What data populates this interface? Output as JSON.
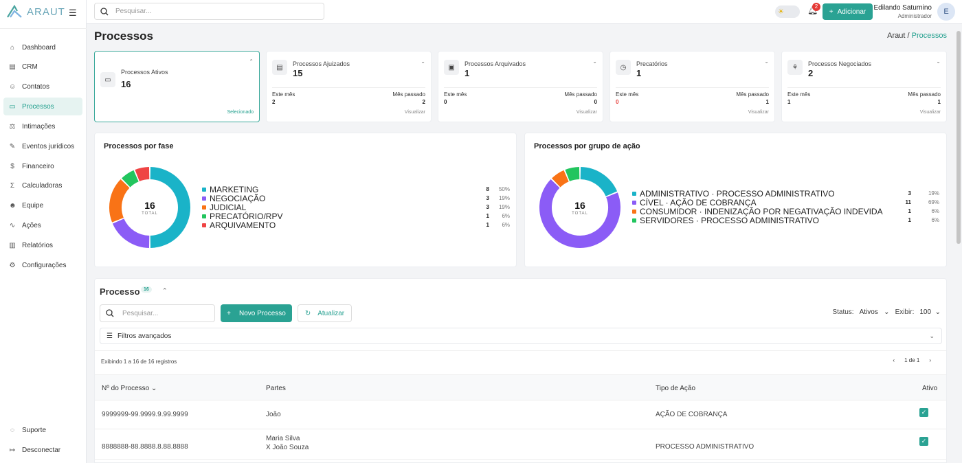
{
  "app": {
    "name": "ARAUT"
  },
  "search": {
    "placeholder": "Pesquisar..."
  },
  "nav": [
    {
      "label": "Dashboard",
      "icon": "home-icon",
      "glyph": "⌂"
    },
    {
      "label": "CRM",
      "icon": "crm-icon",
      "glyph": "▤"
    },
    {
      "label": "Contatos",
      "icon": "contacts-icon",
      "glyph": "☺"
    },
    {
      "label": "Processos",
      "icon": "folder-icon",
      "glyph": "▭"
    },
    {
      "label": "Intimações",
      "icon": "scales-icon",
      "glyph": "⚖"
    },
    {
      "label": "Eventos jurídicos",
      "icon": "gavel-icon",
      "glyph": "✎"
    },
    {
      "label": "Financeiro",
      "icon": "dollar-icon",
      "glyph": "$"
    },
    {
      "label": "Calculadoras",
      "icon": "sigma-icon",
      "glyph": "Σ"
    },
    {
      "label": "Equipe",
      "icon": "team-icon",
      "glyph": "☻"
    },
    {
      "label": "Ações",
      "icon": "activity-icon",
      "glyph": "∿"
    },
    {
      "label": "Relatórios",
      "icon": "bar-chart-icon",
      "glyph": "▥"
    },
    {
      "label": "Configurações",
      "icon": "gear-icon",
      "glyph": "⚙"
    }
  ],
  "nav_bottom": [
    {
      "label": "Suporte",
      "icon": "chat-icon",
      "glyph": "◌"
    },
    {
      "label": "Desconectar",
      "icon": "logout-icon",
      "glyph": "↦"
    }
  ],
  "topbar": {
    "notifications": "2",
    "add_label": "Adicionar",
    "user_name": "Edilando Saturnino",
    "user_role": "Administrador",
    "avatar": "E"
  },
  "page": {
    "title": "Processos",
    "crumb_root": "Araut /",
    "crumb_current": "Processos"
  },
  "stats": [
    {
      "label": "Processos Ativos",
      "value": "16",
      "icon": "folder-icon",
      "glyph": "▭",
      "selected": true,
      "link": "Selecionado"
    },
    {
      "label": "Processos Ajuizados",
      "value": "15",
      "icon": "document-icon",
      "glyph": "▤",
      "this_month_label": "Este mês",
      "this_month": "2",
      "last_month_label": "Mês passado",
      "last_month": "2",
      "link": "Visualizar"
    },
    {
      "label": "Processos Arquivados",
      "value": "1",
      "icon": "archive-icon",
      "glyph": "▣",
      "this_month_label": "Este mês",
      "this_month": "0",
      "last_month_label": "Mês passado",
      "last_month": "0",
      "link": "Visualizar"
    },
    {
      "label": "Precatórios",
      "value": "1",
      "icon": "clock-icon",
      "glyph": "◷",
      "this_month_label": "Este mês",
      "this_month": "0",
      "last_month_label": "Mês passado",
      "last_month": "1",
      "link": "Visualizar",
      "this_month_color": "#e53935"
    },
    {
      "label": "Processos Negociados",
      "value": "2",
      "icon": "handshake-icon",
      "glyph": "⚘",
      "this_month_label": "Este mês",
      "this_month": "1",
      "last_month_label": "Mês passado",
      "last_month": "1",
      "link": "Visualizar"
    }
  ],
  "chart_data": [
    {
      "type": "pie",
      "title": "Processos por fase",
      "total": 16,
      "total_label": "TOTAL",
      "categories": [
        "MARKETING",
        "NEGOCIAÇÃO",
        "JUDICIAL",
        "PRECATÓRIO/RPV",
        "ARQUIVAMENTO"
      ],
      "values": [
        8,
        3,
        3,
        1,
        1
      ],
      "percents": [
        "50%",
        "19%",
        "19%",
        "6%",
        "6%"
      ],
      "colors": [
        "#1ab3c8",
        "#8b5cf6",
        "#f97316",
        "#22c55e",
        "#ef4444"
      ]
    },
    {
      "type": "pie",
      "title": "Processos por grupo de ação",
      "total": 16,
      "total_label": "TOTAL",
      "categories": [
        "ADMINISTRATIVO · PROCESSO ADMINISTRATIVO",
        "CÍVEL · AÇÃO DE COBRANÇA",
        "CONSUMIDOR · INDENIZAÇÃO POR NEGATIVAÇÃO INDEVIDA",
        "SERVIDORES · PROCESSO ADMINISTRATIVO"
      ],
      "values": [
        3,
        11,
        1,
        1
      ],
      "percents": [
        "19%",
        "69%",
        "6%",
        "6%"
      ],
      "colors": [
        "#1ab3c8",
        "#8b5cf6",
        "#f97316",
        "#22c55e"
      ]
    }
  ],
  "table_section": {
    "title": "Processo",
    "count": "16",
    "search_placeholder": "Pesquisar...",
    "new_label": "Novo Processo",
    "refresh_label": "Atualizar",
    "status_label": "Status:",
    "status_value": "Ativos",
    "show_label": "Exibir:",
    "show_value": "100",
    "filters_label": "Filtros avançados",
    "showing": "Exibindo 1 a 16 de 16 registros",
    "page": "1 de 1",
    "columns": [
      "Nº do Processo",
      "Partes",
      "Tipo de Ação",
      "Ativo"
    ],
    "rows": [
      {
        "numero": "9999999-99.9999.9.99.9999",
        "partes": [
          "João"
        ],
        "tipo": "AÇÃO DE COBRANÇA",
        "ativo": true
      },
      {
        "numero": "8888888-88.8888.8.88.8888",
        "partes": [
          "Maria Silva",
          "X João Souza"
        ],
        "tipo": "PROCESSO ADMINISTRATIVO",
        "ativo": true
      }
    ]
  }
}
